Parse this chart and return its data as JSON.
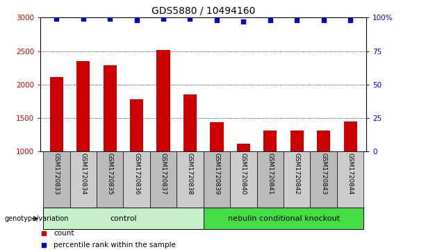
{
  "title": "GDS5880 / 10494160",
  "samples": [
    "GSM1720833",
    "GSM1720834",
    "GSM1720835",
    "GSM1720836",
    "GSM1720837",
    "GSM1720838",
    "GSM1720839",
    "GSM1720840",
    "GSM1720841",
    "GSM1720842",
    "GSM1720843",
    "GSM1720844"
  ],
  "counts": [
    2110,
    2350,
    2290,
    1780,
    2520,
    1850,
    1430,
    1110,
    1305,
    1310,
    1310,
    1445
  ],
  "percentiles": [
    99,
    99,
    99,
    98,
    99,
    99,
    98,
    97,
    98,
    98,
    98,
    98
  ],
  "ylim_left": [
    1000,
    3000
  ],
  "ylim_right": [
    0,
    100
  ],
  "yticks_left": [
    1000,
    1500,
    2000,
    2500,
    3000
  ],
  "yticks_right": [
    0,
    25,
    50,
    75,
    100
  ],
  "ytick_labels_right": [
    "0",
    "25",
    "50",
    "75",
    "100%"
  ],
  "bar_color": "#cc0000",
  "dot_color": "#0000cc",
  "grid_color": "#000000",
  "tick_label_color_left": "#cc0000",
  "tick_label_color_right": "#0000cc",
  "groups": [
    {
      "label": "control",
      "start": 0,
      "end": 5,
      "color": "#c8f0c8"
    },
    {
      "label": "nebulin conditional knockout",
      "start": 6,
      "end": 11,
      "color": "#44dd44"
    }
  ],
  "group_label_prefix": "genotype/variation",
  "legend_items": [
    {
      "label": "count",
      "color": "#cc0000"
    },
    {
      "label": "percentile rank within the sample",
      "color": "#0000cc"
    }
  ],
  "title_fontsize": 10,
  "tick_fontsize": 7.5,
  "bar_width": 0.5,
  "dot_size": 25,
  "xticklabel_color": "#bbbbbb",
  "xticklabel_alt_color": "#cccccc"
}
